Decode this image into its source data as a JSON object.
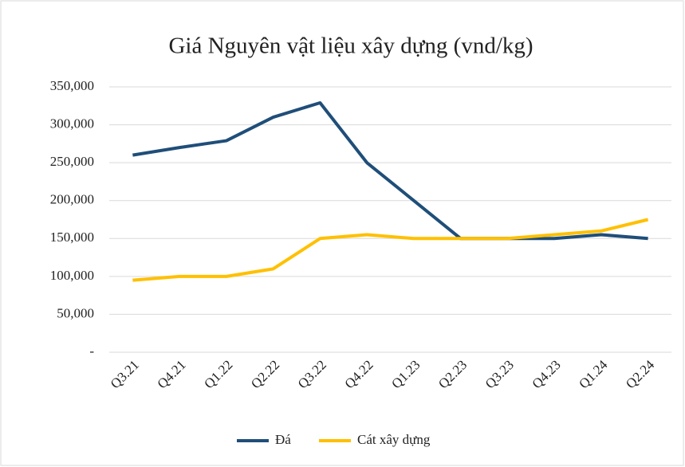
{
  "chart_data": {
    "type": "line",
    "title": "Giá Nguyên  vật liệu xây dựng (vnd/kg)",
    "categories": [
      "Q3.21",
      "Q4.21",
      "Q1.22",
      "Q2.22",
      "Q3.22",
      "Q4.22",
      "Q1.23",
      "Q2.23",
      "Q3.23",
      "Q4.23",
      "Q1.24",
      "Q2.24"
    ],
    "series": [
      {
        "name": "Đá",
        "color": "#1f4e79",
        "values": [
          260000,
          270000,
          279000,
          310000,
          329000,
          250000,
          200000,
          150000,
          150000,
          150000,
          155000,
          150000
        ]
      },
      {
        "name": "Cát xây dựng",
        "color": "#ffc000",
        "values": [
          95000,
          100000,
          100000,
          110000,
          150000,
          155000,
          150000,
          150000,
          150000,
          155000,
          160000,
          175000
        ]
      }
    ],
    "ylim": [
      0,
      350000
    ],
    "yticks": [
      {
        "value": 0,
        "label": "-"
      },
      {
        "value": 50000,
        "label": "50,000"
      },
      {
        "value": 100000,
        "label": "100,000"
      },
      {
        "value": 150000,
        "label": "150,000"
      },
      {
        "value": 200000,
        "label": "200,000"
      },
      {
        "value": 250000,
        "label": "250,000"
      },
      {
        "value": 300000,
        "label": "300,000"
      },
      {
        "value": 350000,
        "label": "350,000"
      }
    ],
    "grid": true,
    "legend": "bottom"
  }
}
